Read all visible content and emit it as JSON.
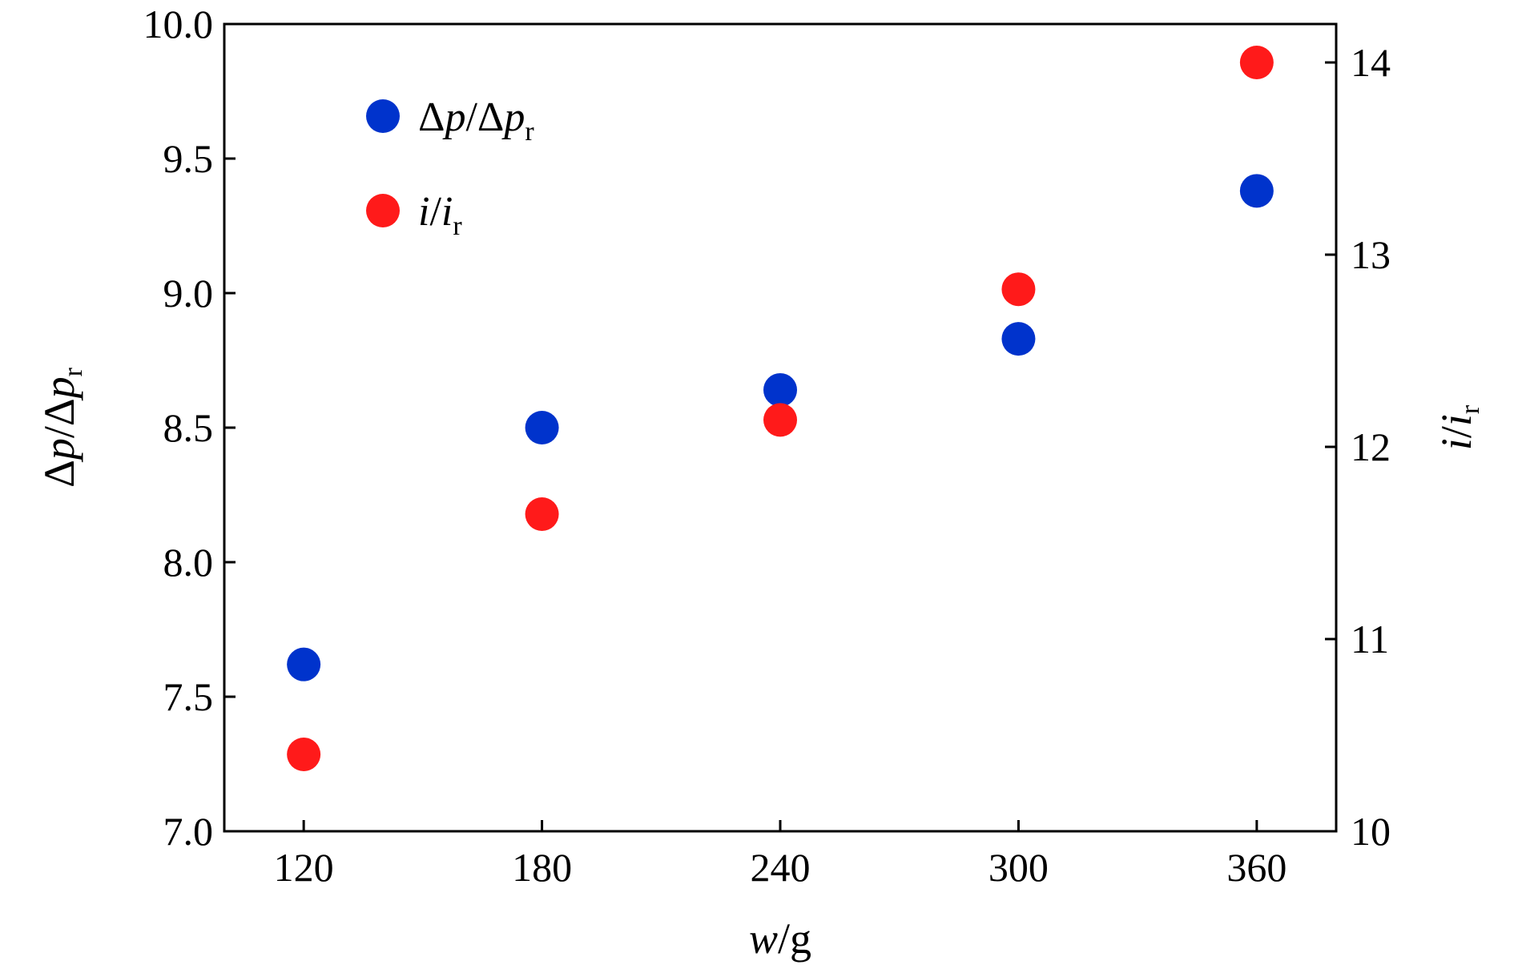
{
  "chart_data": {
    "type": "scatter",
    "x_ticks": [
      "120",
      "180",
      "240",
      "300",
      "360"
    ],
    "y_left_ticks": [
      "7.0",
      "7.5",
      "8.0",
      "8.5",
      "9.0",
      "9.5",
      "10.0"
    ],
    "y_right_ticks": [
      "10",
      "11",
      "12",
      "13",
      "14"
    ],
    "xlim": [
      100,
      380
    ],
    "ylim_left": [
      7.0,
      10.0
    ],
    "ylim_right": [
      10,
      14.2
    ],
    "xlabel": {
      "var": "w",
      "rest": "/g"
    },
    "ylabel_left": {
      "delta1": "Δ",
      "var1": "p",
      "slash": "/",
      "delta2": "Δ",
      "var2": "p",
      "sub": "r"
    },
    "ylabel_right": {
      "var1": "i",
      "slash": "/",
      "var2": "i",
      "sub": "r"
    },
    "series": [
      {
        "axis": "left",
        "color": "#0033cc",
        "legend": {
          "delta1": "Δ",
          "var1": "p",
          "slash": "/",
          "delta2": "Δ",
          "var2": "p",
          "sub": "r"
        },
        "x": [
          120,
          180,
          240,
          300,
          360
        ],
        "y": [
          7.62,
          8.5,
          8.64,
          8.83,
          9.38
        ]
      },
      {
        "axis": "right",
        "color": "#ff1a1a",
        "legend": {
          "var1": "i",
          "slash": "/",
          "var2": "i",
          "sub": "r"
        },
        "x": [
          120,
          180,
          240,
          300,
          360
        ],
        "y": [
          10.4,
          11.65,
          12.14,
          12.82,
          14.0
        ]
      }
    ],
    "legend_position": "top-left",
    "grid": false
  }
}
